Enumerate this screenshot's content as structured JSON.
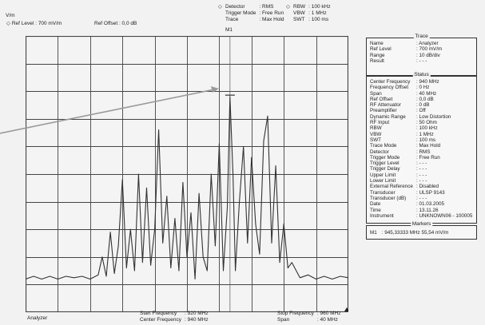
{
  "header": {
    "y_unit": "V/m",
    "ref_level": "Ref Level : 700 mV/m",
    "ref_offset": "Ref Offset : 0,0 dB",
    "col1_labels": [
      "Detector",
      "Trigger Mode",
      "Trace"
    ],
    "col1_values": [
      ": RMS",
      ": Free Run",
      ": Max Hold"
    ],
    "col2_labels": [
      "RBW",
      "VBW",
      "SWT"
    ],
    "col2_values": [
      ": 100 kHz",
      ": 1 MHz",
      ": 100 ms"
    ],
    "marker_label": "M1"
  },
  "trace_panel": {
    "title": "Trace",
    "rows": [
      {
        "label": "Name",
        "value": ": Analyzer"
      },
      {
        "label": "Ref Level",
        "value": ": 700  mV/m"
      },
      {
        "label": "Range",
        "value": ": 10 dB/div"
      },
      {
        "label": "Result",
        "value": ": - - -"
      }
    ]
  },
  "status_panel": {
    "title": "Status",
    "rows": [
      {
        "label": "Center Frequency",
        "value": ": 940   MHz"
      },
      {
        "label": "Frequency Offset",
        "value": ":    0   Hz"
      },
      {
        "label": "Span",
        "value": ":   40   MHz"
      },
      {
        "label": "Ref Offset",
        "value": ":    0,0 dB"
      },
      {
        "label": "RF Attenuator",
        "value": ":    0   dB"
      },
      {
        "label": "Preamplifier",
        "value": ": Off"
      },
      {
        "label": "Dynamic Range",
        "value": ": Low Distortion"
      },
      {
        "label": "RF Input",
        "value": ":   50   Ohm"
      },
      {
        "label": "RBW",
        "value": ":  100   kHz"
      },
      {
        "label": "VBW",
        "value": ":    1   MHz"
      },
      {
        "label": "SWT",
        "value": ":  100   ms"
      },
      {
        "label": "Trace Mode",
        "value": ": Max Hold"
      },
      {
        "label": "Detector",
        "value": ": RMS"
      },
      {
        "label": "Trigger Mode",
        "value": ": Free Run"
      },
      {
        "label": "Trigger Level",
        "value": ": - - -"
      },
      {
        "label": "Trigger Delay",
        "value": ": - - -"
      },
      {
        "label": "Upper Limit",
        "value": ": - - -"
      },
      {
        "label": "Lower Limit",
        "value": ": - - -"
      },
      {
        "label": "External Reference",
        "value": ": Disabled"
      },
      {
        "label": "Transducer",
        "value": ": ULSP 9143"
      },
      {
        "label": "Transducer (dB)",
        "value": ": - - -"
      },
      {
        "label": "Date",
        "value": ": 01.03.2005"
      },
      {
        "label": "Time",
        "value": ": 13.11.26"
      },
      {
        "label": "Instrument",
        "value": ": UNKNOWN06 - 100005"
      }
    ]
  },
  "markers_panel": {
    "title": "Markers",
    "label": "M1",
    "value": ":   945,33333 MHz  55,54 mV/m"
  },
  "footer": {
    "left_label": "Analyzer",
    "start_label": "Start Frequency",
    "start_value": ": 920 MHz",
    "center_label": "Center Frequency",
    "center_value": ": 940 MHz",
    "stop_label": "Stop Frequency",
    "stop_value": ": 960 MHz",
    "span_label": "Span",
    "span_value": ": 40 MHz"
  },
  "colors": {
    "background": "#f2f2f2",
    "grid": "#444444",
    "trace": "#333333",
    "arrow": "#9a9a9a"
  },
  "chart_data": {
    "type": "line",
    "xlim": [
      920,
      960
    ],
    "x_unit": "MHz",
    "ylim_divisions": [
      0,
      10
    ],
    "grid": true,
    "marker": {
      "name": "M1",
      "x": 945.33333,
      "value_label": "55,54 mV/m"
    },
    "series": [
      {
        "x": [
          920,
          921,
          922,
          923,
          924,
          925,
          926,
          927,
          928,
          929,
          929.5,
          930,
          930.5,
          931,
          931.5,
          932,
          932.5,
          933,
          933.5,
          934,
          934.5,
          935,
          935.5,
          936,
          936.5,
          937,
          937.5,
          938,
          938.5,
          939,
          939.5,
          940,
          940.5,
          941,
          941.5,
          942,
          942.5,
          943,
          943.5,
          944,
          944.5,
          945,
          945.33,
          945.7,
          946,
          946.5,
          947,
          947.5,
          948,
          948.5,
          949,
          949.5,
          950,
          950.5,
          951,
          951.5,
          952,
          952.5,
          953,
          954,
          955,
          956,
          957,
          958,
          959,
          960
        ],
        "y": [
          1.2,
          1.3,
          1.2,
          1.3,
          1.2,
          1.3,
          1.25,
          1.3,
          1.2,
          1.35,
          2.0,
          1.3,
          2.9,
          1.4,
          2.4,
          4.8,
          1.6,
          3.0,
          1.5,
          5.0,
          1.8,
          4.5,
          1.7,
          3.0,
          6.6,
          2.5,
          4.2,
          1.6,
          3.4,
          1.5,
          4.7,
          2.0,
          3.6,
          1.2,
          4.3,
          2.0,
          1.5,
          5.0,
          2.4,
          6.1,
          1.5,
          3.8,
          7.8,
          5.0,
          1.5,
          4.0,
          6.0,
          2.5,
          5.6,
          3.2,
          2.1,
          6.2,
          7.1,
          2.5,
          5.3,
          1.8,
          3.2,
          1.6,
          1.8,
          1.25,
          1.35,
          1.2,
          1.3,
          1.2,
          1.3,
          1.25
        ]
      }
    ]
  }
}
